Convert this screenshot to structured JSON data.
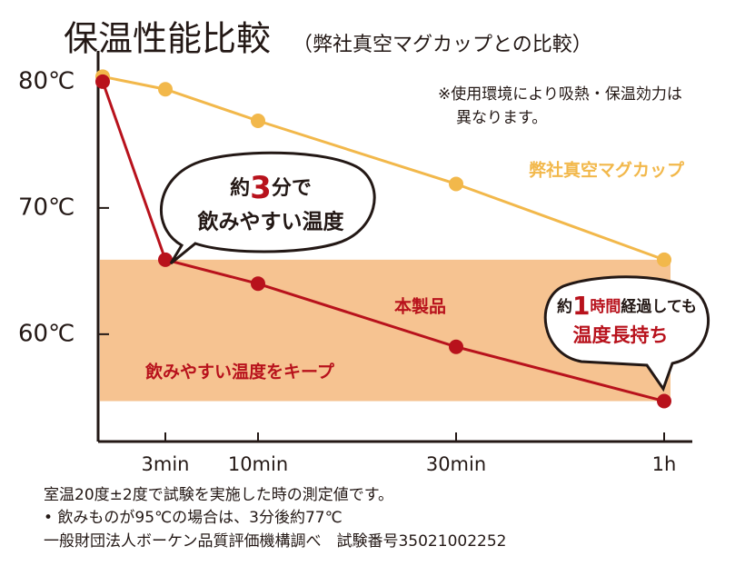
{
  "chart_data": {
    "type": "line",
    "title": "保温性能比較",
    "subtitle": "（弊社真空マグカップとの比較）",
    "categories": [
      null,
      "3min",
      "10min",
      "30min",
      "1h"
    ],
    "series": [
      {
        "name": "弊社真空マグカップ",
        "color": "#f2b84b",
        "values": [
          80.4,
          79.4,
          76.9,
          71.9,
          65.9
        ]
      },
      {
        "name": "本製品",
        "color": "#b8121c",
        "values": [
          80.0,
          65.9,
          64.0,
          59.0,
          54.7
        ]
      }
    ],
    "band": {
      "ylim": [
        54.7,
        65.9
      ],
      "label": "飲みやすい温度をキープ",
      "color": "#f6c391"
    },
    "ylim": [
      51.5,
      81
    ],
    "yticks": [
      {
        "value": 60,
        "label": "60℃"
      },
      {
        "value": 70,
        "label": "70℃"
      },
      {
        "value": 80,
        "label": "80℃"
      }
    ],
    "note": [
      "※使用環境により吸熱・保温効力は",
      "異なります。"
    ],
    "callouts": [
      {
        "parts": [
          "約",
          "3",
          "分で"
        ],
        "line2": "飲みやすい温度"
      },
      {
        "parts": [
          "約",
          "1",
          "時間",
          "経過しても"
        ],
        "line2": "温度長持ち"
      }
    ],
    "footnotes": [
      "室温20度±2度で試験を実施した時の測定値です。",
      "• 飲みものが95℃の場合は、3分後約77℃",
      "一般財団法人ボーケン品質評価機構調べ　試験番号35021002252"
    ]
  }
}
